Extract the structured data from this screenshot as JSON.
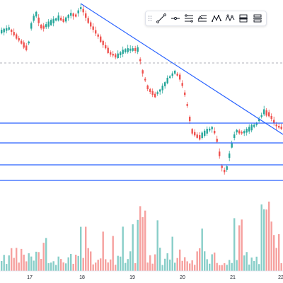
{
  "colors": {
    "up": "#26a69a",
    "down": "#ef5350",
    "trendline": "#2962ff",
    "hline": "#2962ff",
    "grid": "#f0f3fa",
    "dashed_line": "#9598a1",
    "text": "#131722"
  },
  "toolbar": {
    "buttons": [
      {
        "icon": "grip-dots-icon"
      },
      {
        "icon": "trend-line-icon"
      },
      {
        "icon": "horizontal-ray-icon"
      },
      {
        "icon": "parallel-channel-icon"
      },
      {
        "icon": "fib-retracement-icon"
      },
      {
        "icon": "xabcd-pattern-icon"
      },
      {
        "icon": "zigzag-pattern-icon"
      },
      {
        "icon": "long-position-icon"
      },
      {
        "icon": "short-position-icon"
      }
    ]
  },
  "x_axis": {
    "labels": [
      "17",
      "18",
      "19",
      "20",
      "21",
      "22"
    ]
  },
  "chart_data": {
    "type": "candlestick",
    "x_axis_day_labels": [
      "17",
      "18",
      "19",
      "20",
      "21",
      "22"
    ],
    "price_axis": "not shown",
    "volume_panel": true,
    "grid": false,
    "drawings": {
      "trendline": "descending from the day-18 high through the day-20 high to the end of day 22",
      "horizontal_levels": 4,
      "dashed_level": 1
    }
  }
}
